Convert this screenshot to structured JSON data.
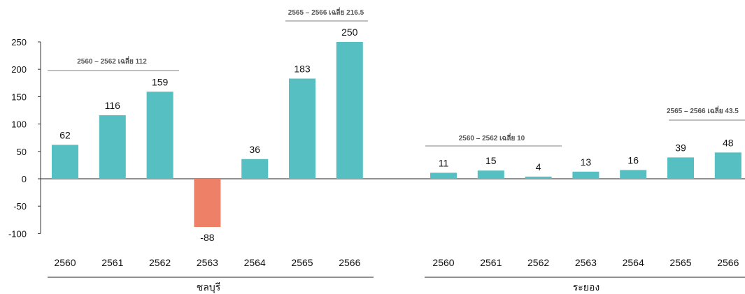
{
  "chart_data": {
    "type": "bar",
    "ylim": [
      -100,
      250
    ],
    "yticks": [
      250,
      200,
      150,
      100,
      50,
      0,
      -50,
      -100
    ],
    "grid": false,
    "colors": {
      "positive": "#56BFC1",
      "negative": "#EF8068",
      "axis": "#333333",
      "annotation_line": "#999999"
    },
    "groups": [
      {
        "name": "ชลบุรี",
        "categories": [
          "2560",
          "2561",
          "2562",
          "2563",
          "2564",
          "2565",
          "2566"
        ],
        "values": [
          62,
          116,
          159,
          -88,
          36,
          183,
          250
        ],
        "labels": [
          "62",
          "116",
          "159",
          "-88",
          "36",
          "183",
          "250"
        ],
        "annotations": [
          {
            "text": "2560 – 2562 เฉลี่ย 112",
            "from": 0,
            "to": 2,
            "level": 112
          },
          {
            "text": "2565 – 2566 เฉลี่ย 216.5",
            "from": 5,
            "to": 6,
            "level": 216.5
          }
        ]
      },
      {
        "name": "ระยอง",
        "categories": [
          "2560",
          "2561",
          "2562",
          "2563",
          "2564",
          "2565",
          "2566"
        ],
        "values": [
          11,
          15,
          4,
          13,
          16,
          39,
          48
        ],
        "labels": [
          "11",
          "15",
          "4",
          "13",
          "16",
          "39",
          "48"
        ],
        "annotations": [
          {
            "text": "2560 – 2562 เฉลี่ย 10",
            "from": 0,
            "to": 2,
            "level": 10
          },
          {
            "text": "2565 – 2566 เฉลี่ย 43.5",
            "from": 5,
            "to": 6,
            "level": 43.5
          }
        ]
      }
    ]
  }
}
